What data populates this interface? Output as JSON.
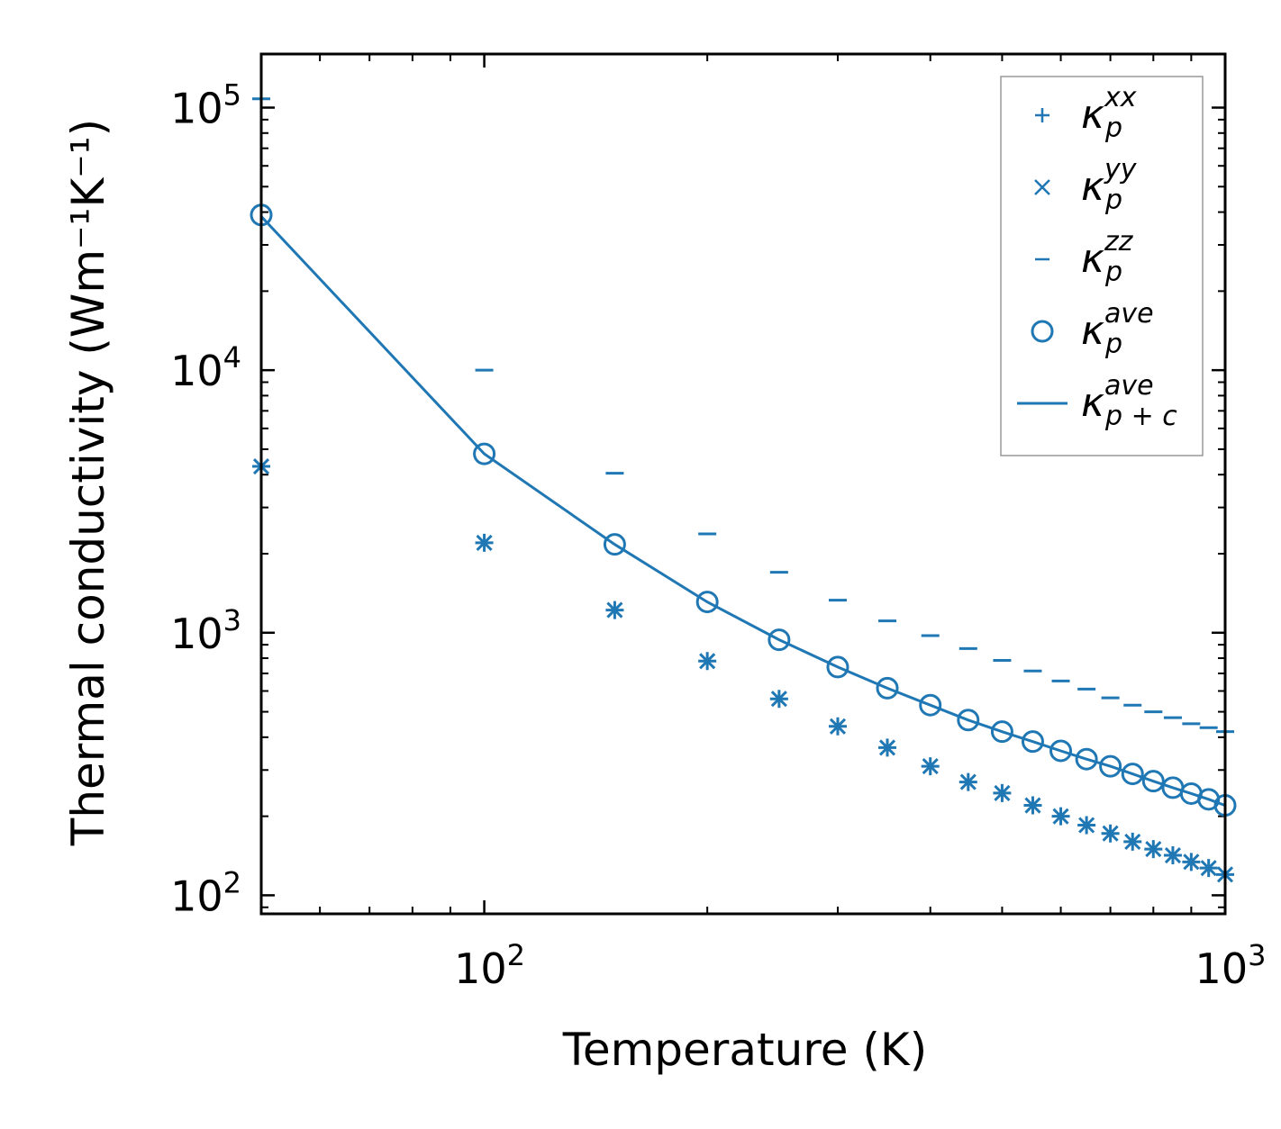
{
  "chart_data": {
    "type": "scatter",
    "scale": "log-log",
    "xlabel": "Temperature (K)",
    "ylabel": "Thermal conductivity (Wm⁻¹K⁻¹)",
    "xlim": [
      50,
      1000
    ],
    "ylim": [
      85,
      160000
    ],
    "x_tick_labels": [
      {
        "base": "10",
        "exp": "2",
        "value": 100
      },
      {
        "base": "10",
        "exp": "3",
        "value": 1000
      }
    ],
    "y_tick_labels": [
      {
        "base": "10",
        "exp": "2",
        "value": 100
      },
      {
        "base": "10",
        "exp": "3",
        "value": 1000
      },
      {
        "base": "10",
        "exp": "4",
        "value": 10000
      },
      {
        "base": "10",
        "exp": "5",
        "value": 100000
      }
    ],
    "x": [
      50,
      100,
      150,
      200,
      250,
      300,
      350,
      400,
      450,
      500,
      550,
      600,
      650,
      700,
      750,
      800,
      850,
      900,
      950,
      1000
    ],
    "series": [
      {
        "name": "kappa_p^xx",
        "marker": "plus",
        "values": [
          4300,
          2200,
          1220,
          780,
          560,
          440,
          365,
          310,
          270,
          245,
          220,
          200,
          185,
          172,
          160,
          150,
          142,
          134,
          127,
          120
        ]
      },
      {
        "name": "kappa_p^yy",
        "marker": "x",
        "values": [
          4300,
          2200,
          1220,
          780,
          560,
          440,
          365,
          310,
          270,
          245,
          220,
          200,
          185,
          172,
          160,
          150,
          142,
          134,
          127,
          120
        ]
      },
      {
        "name": "kappa_p^zz",
        "marker": "hline",
        "values": [
          108000,
          10000,
          4050,
          2380,
          1700,
          1330,
          1110,
          975,
          870,
          785,
          715,
          655,
          610,
          565,
          530,
          500,
          475,
          450,
          435,
          420
        ]
      },
      {
        "name": "kappa_p^ave",
        "marker": "circle",
        "values": [
          39000,
          4800,
          2170,
          1310,
          940,
          740,
          615,
          530,
          465,
          420,
          385,
          355,
          330,
          310,
          290,
          272,
          257,
          244,
          232,
          220
        ]
      },
      {
        "name": "kappa_p+c^ave",
        "marker": "line",
        "values": [
          38500,
          4800,
          2170,
          1310,
          940,
          740,
          615,
          530,
          465,
          420,
          385,
          355,
          330,
          310,
          290,
          272,
          257,
          244,
          232,
          220
        ]
      }
    ],
    "legend": {
      "position": "top-right",
      "entries": [
        {
          "symbol": "κ",
          "sub": "p",
          "sup": "xx"
        },
        {
          "symbol": "κ",
          "sub": "p",
          "sup": "yy"
        },
        {
          "symbol": "κ",
          "sub": "p",
          "sup": "zz"
        },
        {
          "symbol": "κ",
          "sub": "p",
          "sup": "ave"
        },
        {
          "symbol": "κ",
          "sub": "p + c",
          "sup": "ave"
        }
      ]
    },
    "color": "#1f77b4"
  }
}
